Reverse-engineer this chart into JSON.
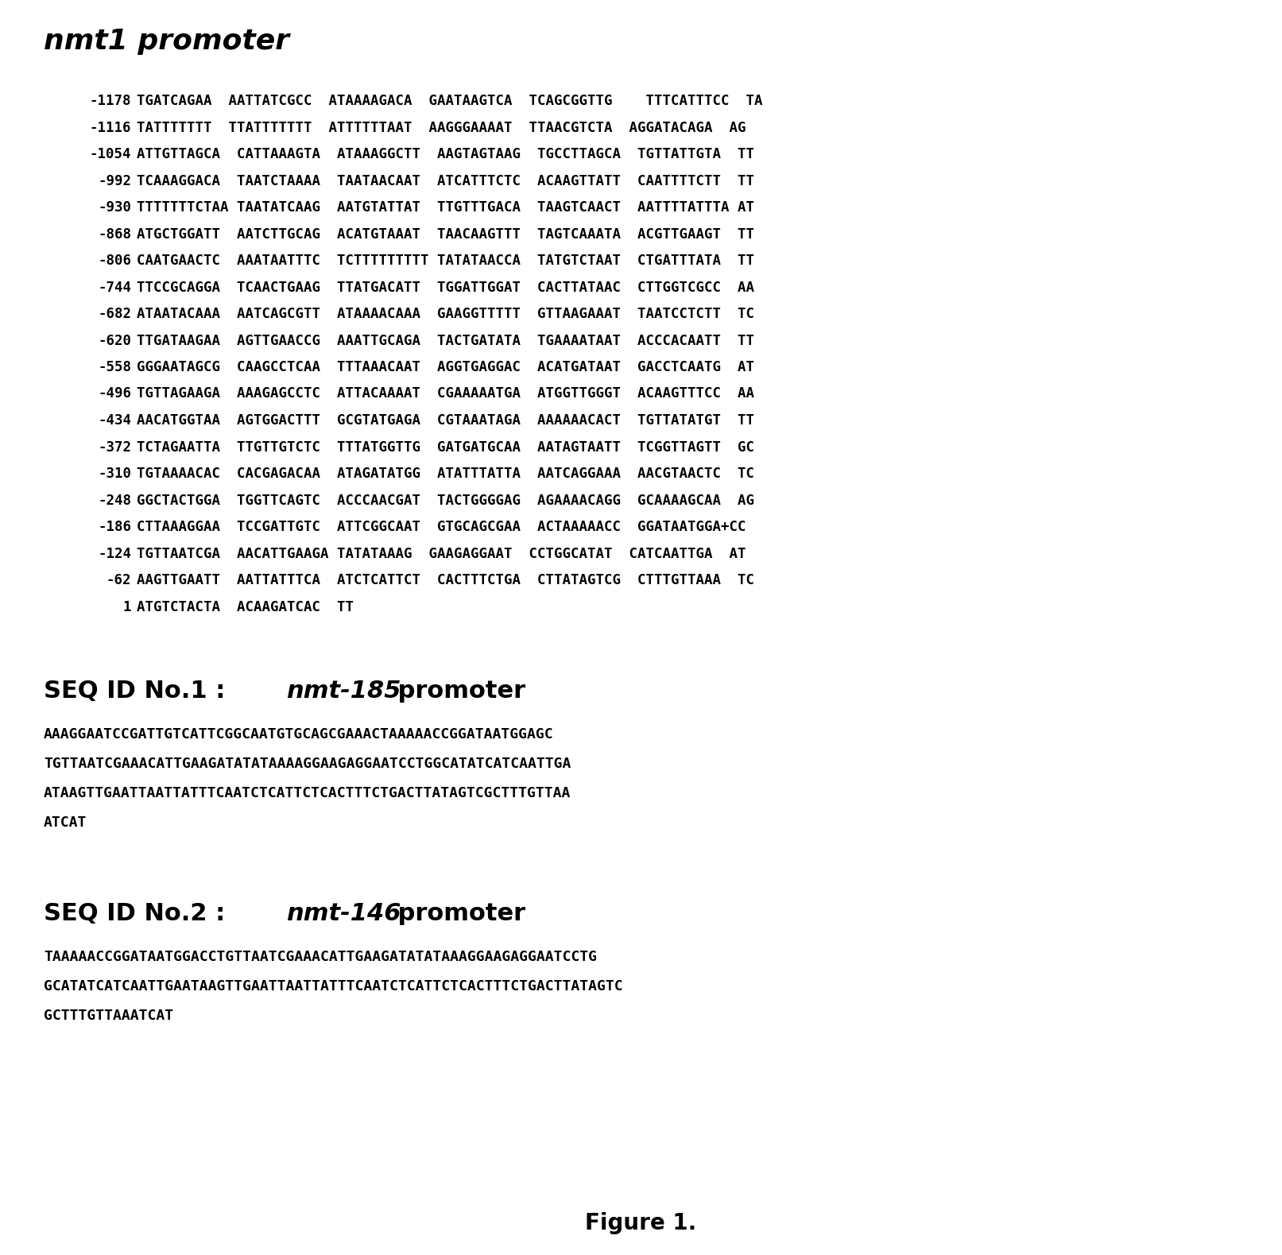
{
  "title": "nmt1 promoter",
  "background_color": "#ffffff",
  "figsize": [
    16.13,
    15.79
  ],
  "dpi": 100,
  "seq_lines": [
    [
      "-1178",
      "TGATCAGAA  AATTATCGCC  ATAAAAGACA  GAATAAGTCA  TCAGCGGTTG    TTTCATTTCC  TA"
    ],
    [
      "-1116",
      "TATTTTTTT  TTATTTTTTT  ATTTTTTAAT  AAGGGAAAAT  TTAACGTCTA  AGGATACAGA  AG"
    ],
    [
      "-1054",
      "ATTGTTAGCA  CATTAAAGTA  ATAAAGGCTT  AAGTAGTAAG  TGCCTTAGCA  TGTTATTGTA  TT"
    ],
    [
      "-992",
      "TCAAAGGACA  TAATCTAAAA  TAATAACAAT  ATCATTTCTC  ACAAGTTATT  CAATTTTCTT  TT"
    ],
    [
      "-930",
      "TTTTTTTCTAA TAATATCAAG  AATGTATTAT  TTGTTTGACA  TAAGTCAACT  AATTTTATTTA AT"
    ],
    [
      "-868",
      "ATGCTGGATT  AATCTTGCAG  ACATGTAAAT  TAACAAGTTT  TAGTCAAATA  ACGTTGAAGT  TT"
    ],
    [
      "-806",
      "CAATGAACTC  AAATAATTTC  TCTTTTTTTTT TATATAACCA  TATGTCTAAT  CTGATTTATA  TT"
    ],
    [
      "-744",
      "TTCCGCAGGA  TCAACTGAAG  TTATGACATT  TGGATTGGAT  CACTTATAAC  CTTGGTCGCC  AA"
    ],
    [
      "-682",
      "ATAATACAAA  AATCAGCGTT  ATAAAACAAA  GAAGGTTTTT  GTTAAGAAAT  TAATCCTCTT  TC"
    ],
    [
      "-620",
      "TTGATAAGAA  AGTTGAACCG  AAATTGCAGA  TACTGATATA  TGAAAATAAT  ACCCACAATT  TT"
    ],
    [
      "-558",
      "GGGAATAGCG  CAAGCCTCAA  TTTAAACAAT  AGGTGAGGAC  ACATGATAAT  GACCTCAATG  AT"
    ],
    [
      "-496",
      "TGTTAGAAGA  AAAGAGCCTC  ATTACAAAAT  CGAAAAATGA  ATGGTTGGGT  ACAAGTTTCC  AA"
    ],
    [
      "-434",
      "AACATGGTAA  AGTGGACTTT  GCGTATGAGA  CGTAAATAGA  AAAAAACACT  TGTTATATGT  TT"
    ],
    [
      "-372",
      "TCTAGAATTA  TTGTTGTCTC  TTTATGGTTG  GATGATGCAA  AATAGTAATT  TCGGTTAGTT  GC"
    ],
    [
      "-310",
      "TGTAAAACAC  CACGAGACAA  ATAGATATGG  ATATTTATTA  AATCAGGAAA  AACGTAACTC  TC"
    ],
    [
      "-248",
      "GGCTACTGGA  TGGTTCAGTC  ACCCAACGAT  TACTGGGGAG  AGAAAACAGG  GCAAAAGCAA  AG"
    ],
    [
      "-186",
      "CTTAAAGGAA  TCCGATTGTC  ATTCGGCAAT  GTGCAGCGAA  ACTAAAAACC  GGATAATGGA+CC"
    ],
    [
      "-124",
      "TGTTAATCGA  AACATTGAAGA TATATAAAG  GAAGAGGAAT  CCTGGCATAT  CATCAATTGA  AT"
    ],
    [
      "-62",
      "AAGTTGAATT  AATTATTTCA  ATCTCATTCT  CACTTTCTGA  CTTATAGTCG  CTTTGTTAAA  TC"
    ],
    [
      "1",
      "ATGTCTACTA  ACAAGATCAC  TT"
    ]
  ],
  "seq1_lines": [
    "AAAGGAATCCGATTGTCATTCGGCAATGTGCAGCGAAACTAAAAACCGGATAATGGAGC",
    "TGTTAATCGAAACATTGAAGATATATAAAAGGAAGAGGAATCCTGGCATATCATCAATTGA",
    "ATAAGTTGAATTAATTATTTCAATCTCATTCTCACTTTCTGACTTATAGTCGCTTTGTTAA",
    "ATCAT"
  ],
  "seq2_lines": [
    "TAAAAACCGGATAATGGACCTGTTAATCGAAACATTGAAGATATATAAAGGAAGAGGAATCCTG",
    "GCATATCATCAATTGAATAAGTTGAATTAATTATTTCAATCTCATTCTCACTTTCTGACTTATAGTC",
    "GCTTTGTTAAATCAT"
  ],
  "figure_label": "Figure 1."
}
